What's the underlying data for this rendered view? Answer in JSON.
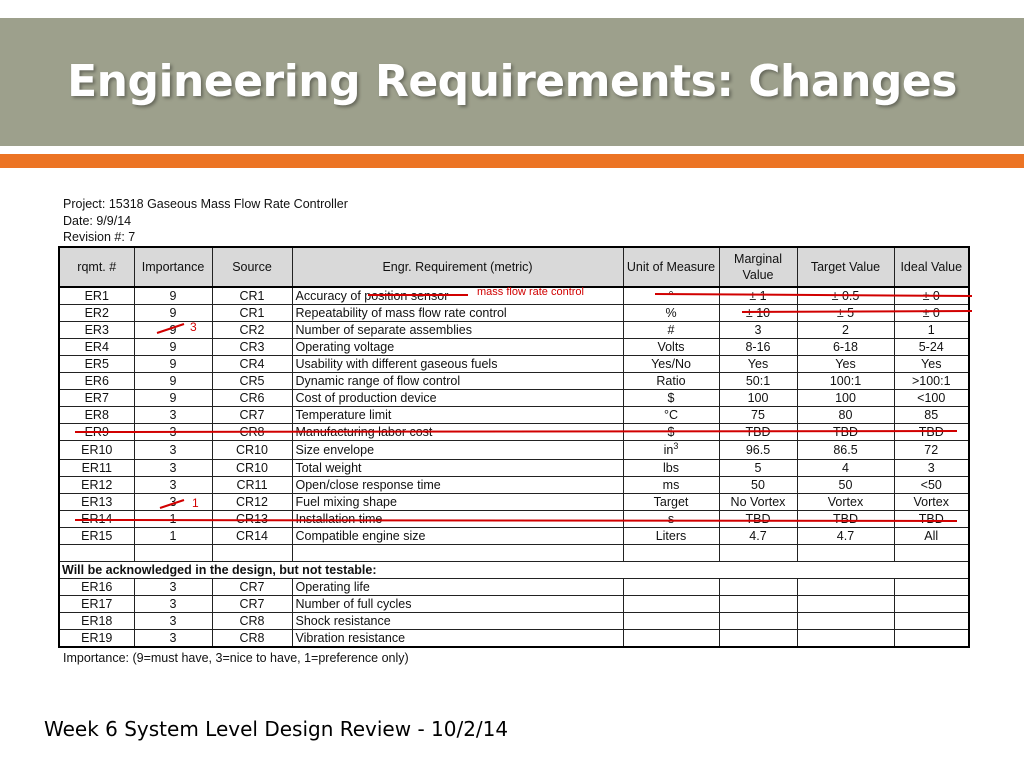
{
  "slide": {
    "title": "Engineering Requirements: Changes",
    "footer": "Week 6 System Level Design Review - 10/2/14"
  },
  "project_info": {
    "project": "Project: 15318 Gaseous Mass Flow Rate Controller",
    "date": "Date: 9/9/14",
    "revision": "Revision #: 7"
  },
  "table": {
    "headers": [
      "rqmt. #",
      "Importance",
      "Source",
      "Engr. Requirement (metric)",
      "Unit of Measure",
      "Marginal Value",
      "Target Value",
      "Ideal Value"
    ],
    "rows": [
      [
        "ER1",
        "9",
        "CR1",
        "Accuracy of position sensor",
        "°",
        "± 1",
        "± 0.5",
        "± 0"
      ],
      [
        "ER2",
        "9",
        "CR1",
        "Repeatability of mass flow rate control",
        "%",
        "± 10",
        "± 5",
        "± 0"
      ],
      [
        "ER3",
        "9",
        "CR2",
        "Number of separate assemblies",
        "#",
        "3",
        "2",
        "1"
      ],
      [
        "ER4",
        "9",
        "CR3",
        "Operating voltage",
        "Volts",
        "8-16",
        "6-18",
        "5-24"
      ],
      [
        "ER5",
        "9",
        "CR4",
        "Usability with different gaseous fuels",
        "Yes/No",
        "Yes",
        "Yes",
        "Yes"
      ],
      [
        "ER6",
        "9",
        "CR5",
        "Dynamic range of flow control",
        "Ratio",
        "50:1",
        "100:1",
        ">100:1"
      ],
      [
        "ER7",
        "9",
        "CR6",
        "Cost of production device",
        "$",
        "100",
        "100",
        "<100"
      ],
      [
        "ER8",
        "3",
        "CR7",
        "Temperature limit",
        "°C",
        "75",
        "80",
        "85"
      ],
      [
        "ER9",
        "3",
        "CR8",
        "Manufacturing labor cost",
        "$",
        "TBD",
        "TBD",
        "TBD"
      ],
      [
        "ER10",
        "3",
        "CR10",
        "Size envelope",
        "in",
        "96.5",
        "86.5",
        "72"
      ],
      [
        "ER11",
        "3",
        "CR10",
        "Total weight",
        "lbs",
        "5",
        "4",
        "3"
      ],
      [
        "ER12",
        "3",
        "CR11",
        "Open/close response time",
        "ms",
        "50",
        "50",
        "<50"
      ],
      [
        "ER13",
        "3",
        "CR12",
        "Fuel mixing shape",
        "Target",
        "No Vortex",
        "Vortex",
        "Vortex"
      ],
      [
        "ER14",
        "1",
        "CR13",
        "Installation time",
        "s",
        "TBD",
        "TBD",
        "TBD"
      ],
      [
        "ER15",
        "1",
        "CR14",
        "Compatible engine size",
        "Liters",
        "4.7",
        "4.7",
        "All"
      ]
    ],
    "size_unit_exponent": "3",
    "section_label": "Will be acknowledged in the design, but not testable:",
    "untestable_rows": [
      [
        "ER16",
        "3",
        "CR7",
        "Operating life"
      ],
      [
        "ER17",
        "3",
        "CR7",
        "Number of full cycles"
      ],
      [
        "ER18",
        "3",
        "CR8",
        "Shock resistance"
      ],
      [
        "ER19",
        "3",
        "CR8",
        "Vibration resistance"
      ]
    ],
    "footnote": "Importance: (9=must have, 3=nice to have, 1=preference only)"
  },
  "annotations": {
    "er1_replacement": "mass flow rate control",
    "er3_new_importance": "3",
    "er13_new_importance": "1",
    "ink_color": "#d10000"
  },
  "colors": {
    "title_band": "#9da08c",
    "accent_bar": "#ec7424",
    "header_fill": "#d9d9d9"
  }
}
